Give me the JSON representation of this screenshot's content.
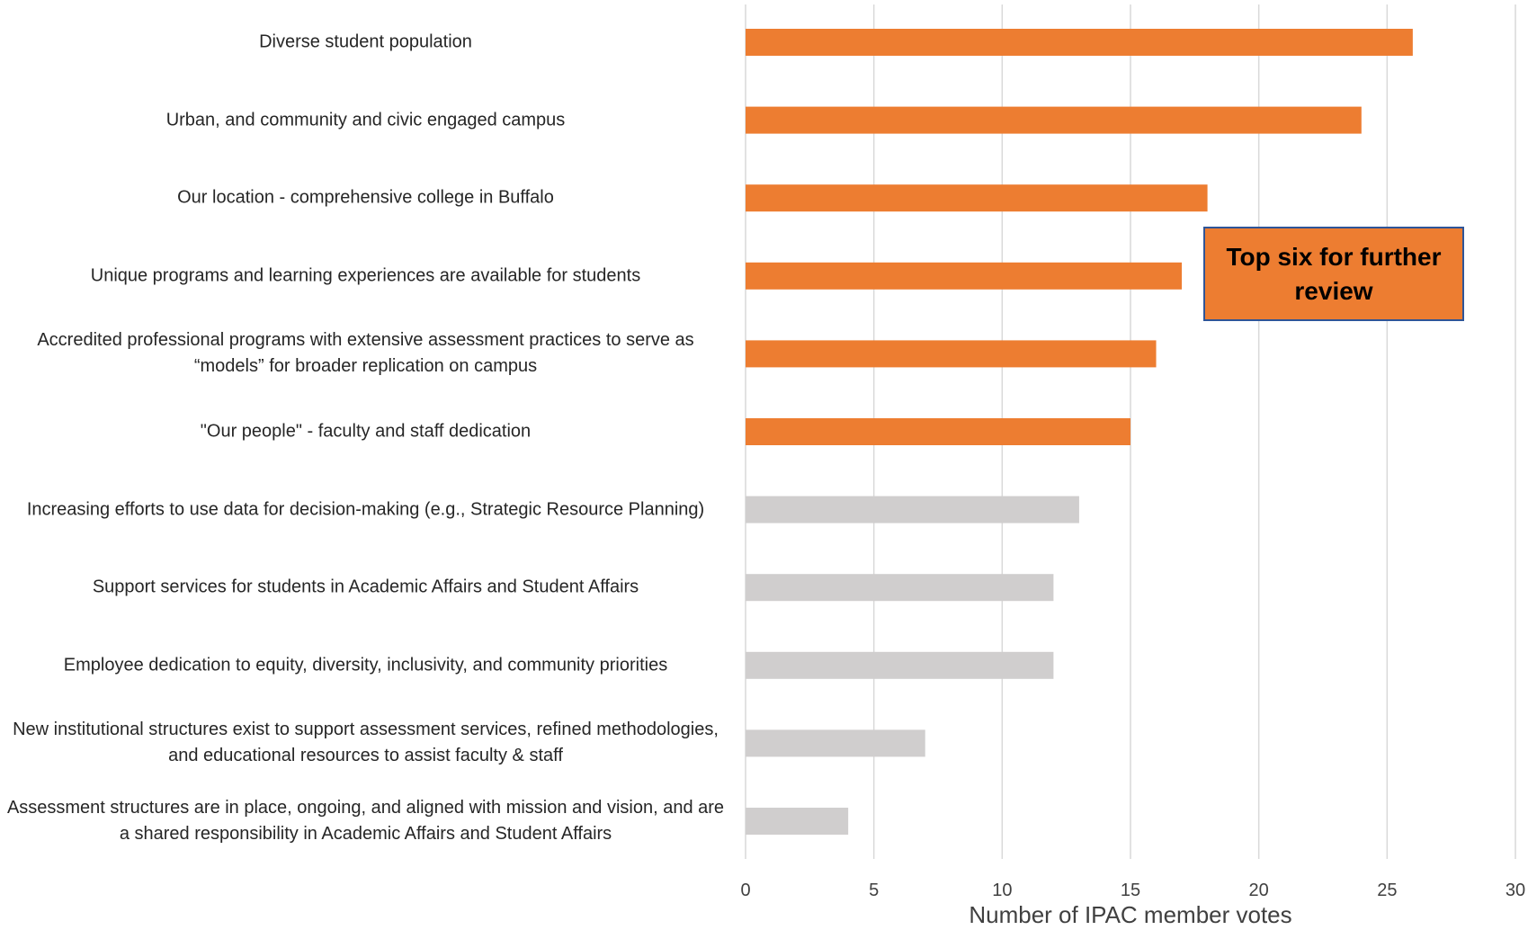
{
  "chart_data": {
    "type": "bar",
    "orientation": "horizontal",
    "categories": [
      "Diverse student population",
      "Urban, and community and civic engaged campus",
      "Our location - comprehensive college in Buffalo",
      "Unique programs and learning experiences are available for students",
      "Accredited professional programs with extensive assessment practices to serve as “models” for broader replication on campus",
      "\"Our people\" - faculty and staff  dedication",
      "Increasing efforts to use data for decision-making (e.g., Strategic Resource Planning)",
      "Support services for students in Academic Affairs and Student Affairs",
      "Employee dedication to equity, diversity, inclusivity, and community priorities",
      "New institutional structures exist to support assessment services, refined methodologies, and educational resources to assist faculty & staff",
      "Assessment structures are in place, ongoing, and aligned with mission and vision, and are a shared responsibility  in Academic Affairs and Student Affairs"
    ],
    "values": [
      26,
      24,
      18,
      17,
      16,
      15,
      13,
      12,
      12,
      7,
      4
    ],
    "highlight_count": 6,
    "colors": {
      "highlight": "#ED7D31",
      "other": "#D0CECE",
      "grid": "#D9D9D9",
      "callout_border": "#2F5597"
    },
    "xlabel": "Number of IPAC member votes",
    "ylabel": "",
    "xlim": [
      0,
      30
    ],
    "xticks": [
      0,
      5,
      10,
      15,
      20,
      25,
      30
    ],
    "grid": true,
    "annotation": "Top six for further review"
  }
}
